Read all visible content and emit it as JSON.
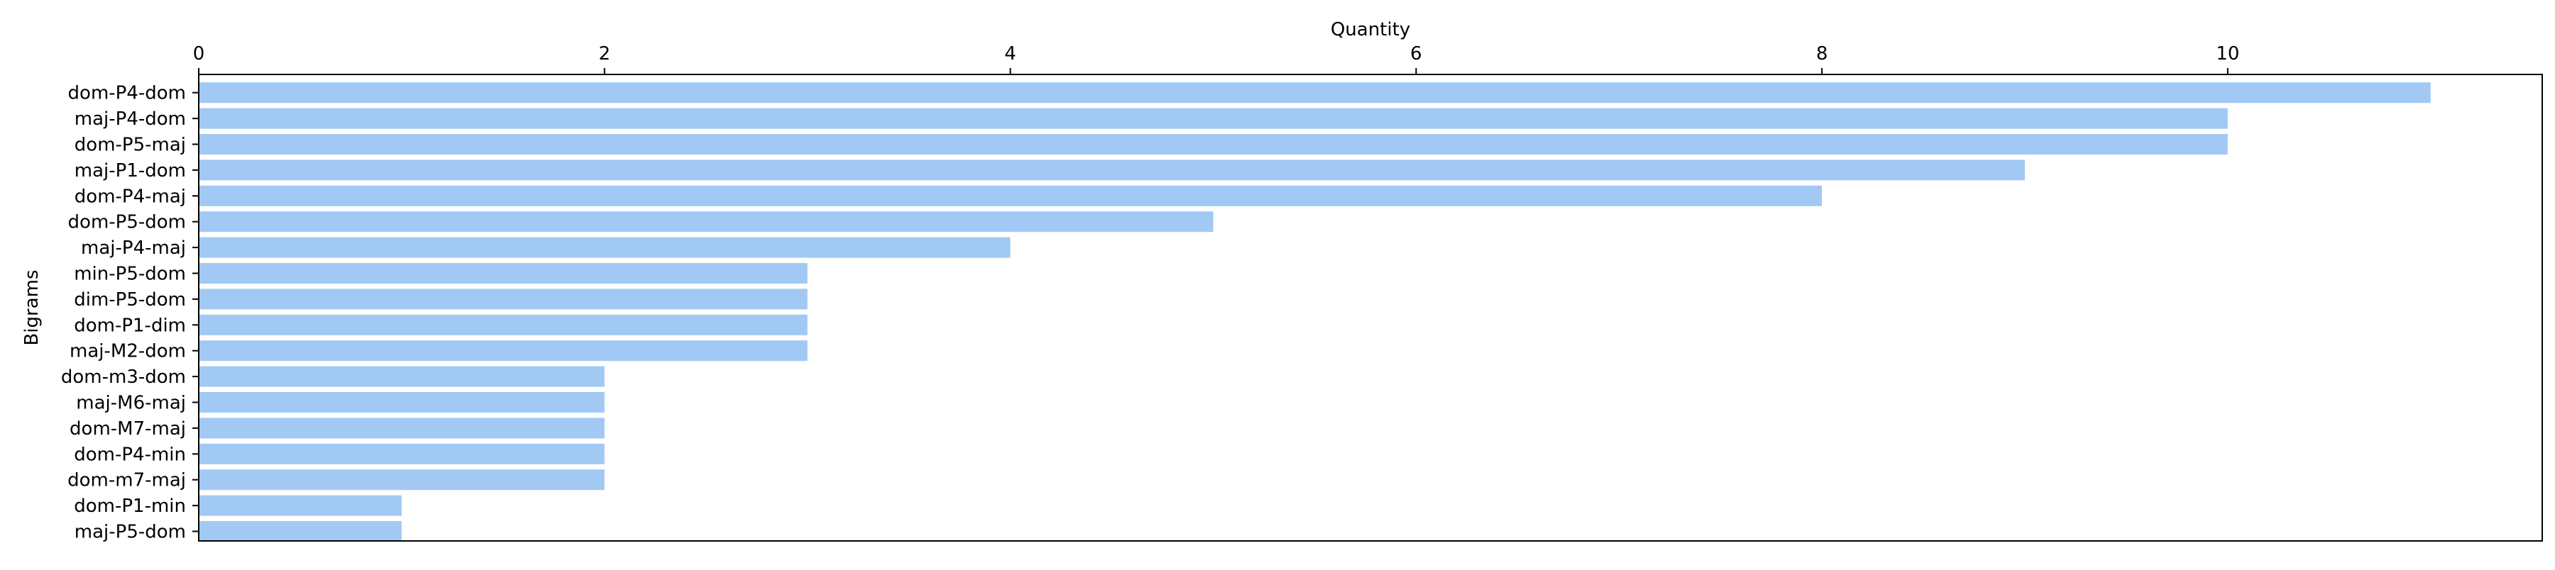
{
  "chart_data": {
    "type": "bar",
    "orientation": "horizontal",
    "xlabel": "Quantity",
    "ylabel": "Bigrams",
    "x_axis_position": "top",
    "xlim": [
      0,
      11.55
    ],
    "xticks": [
      0,
      2,
      4,
      6,
      8,
      10
    ],
    "grid": false,
    "legend": "none",
    "bar_color": "#a1c9f4",
    "categories": [
      "dom-P4-dom",
      "maj-P4-dom",
      "dom-P5-maj",
      "maj-P1-dom",
      "dom-P4-maj",
      "dom-P5-dom",
      "maj-P4-maj",
      "min-P5-dom",
      "dim-P5-dom",
      "dom-P1-dim",
      "maj-M2-dom",
      "dom-m3-dom",
      "maj-M6-maj",
      "dom-M7-maj",
      "dom-P4-min",
      "dom-m7-maj",
      "dom-P1-min",
      "maj-P5-dom"
    ],
    "values": [
      11,
      10,
      10,
      9,
      8,
      5,
      4,
      3,
      3,
      3,
      3,
      2,
      2,
      2,
      2,
      2,
      1,
      1
    ]
  }
}
